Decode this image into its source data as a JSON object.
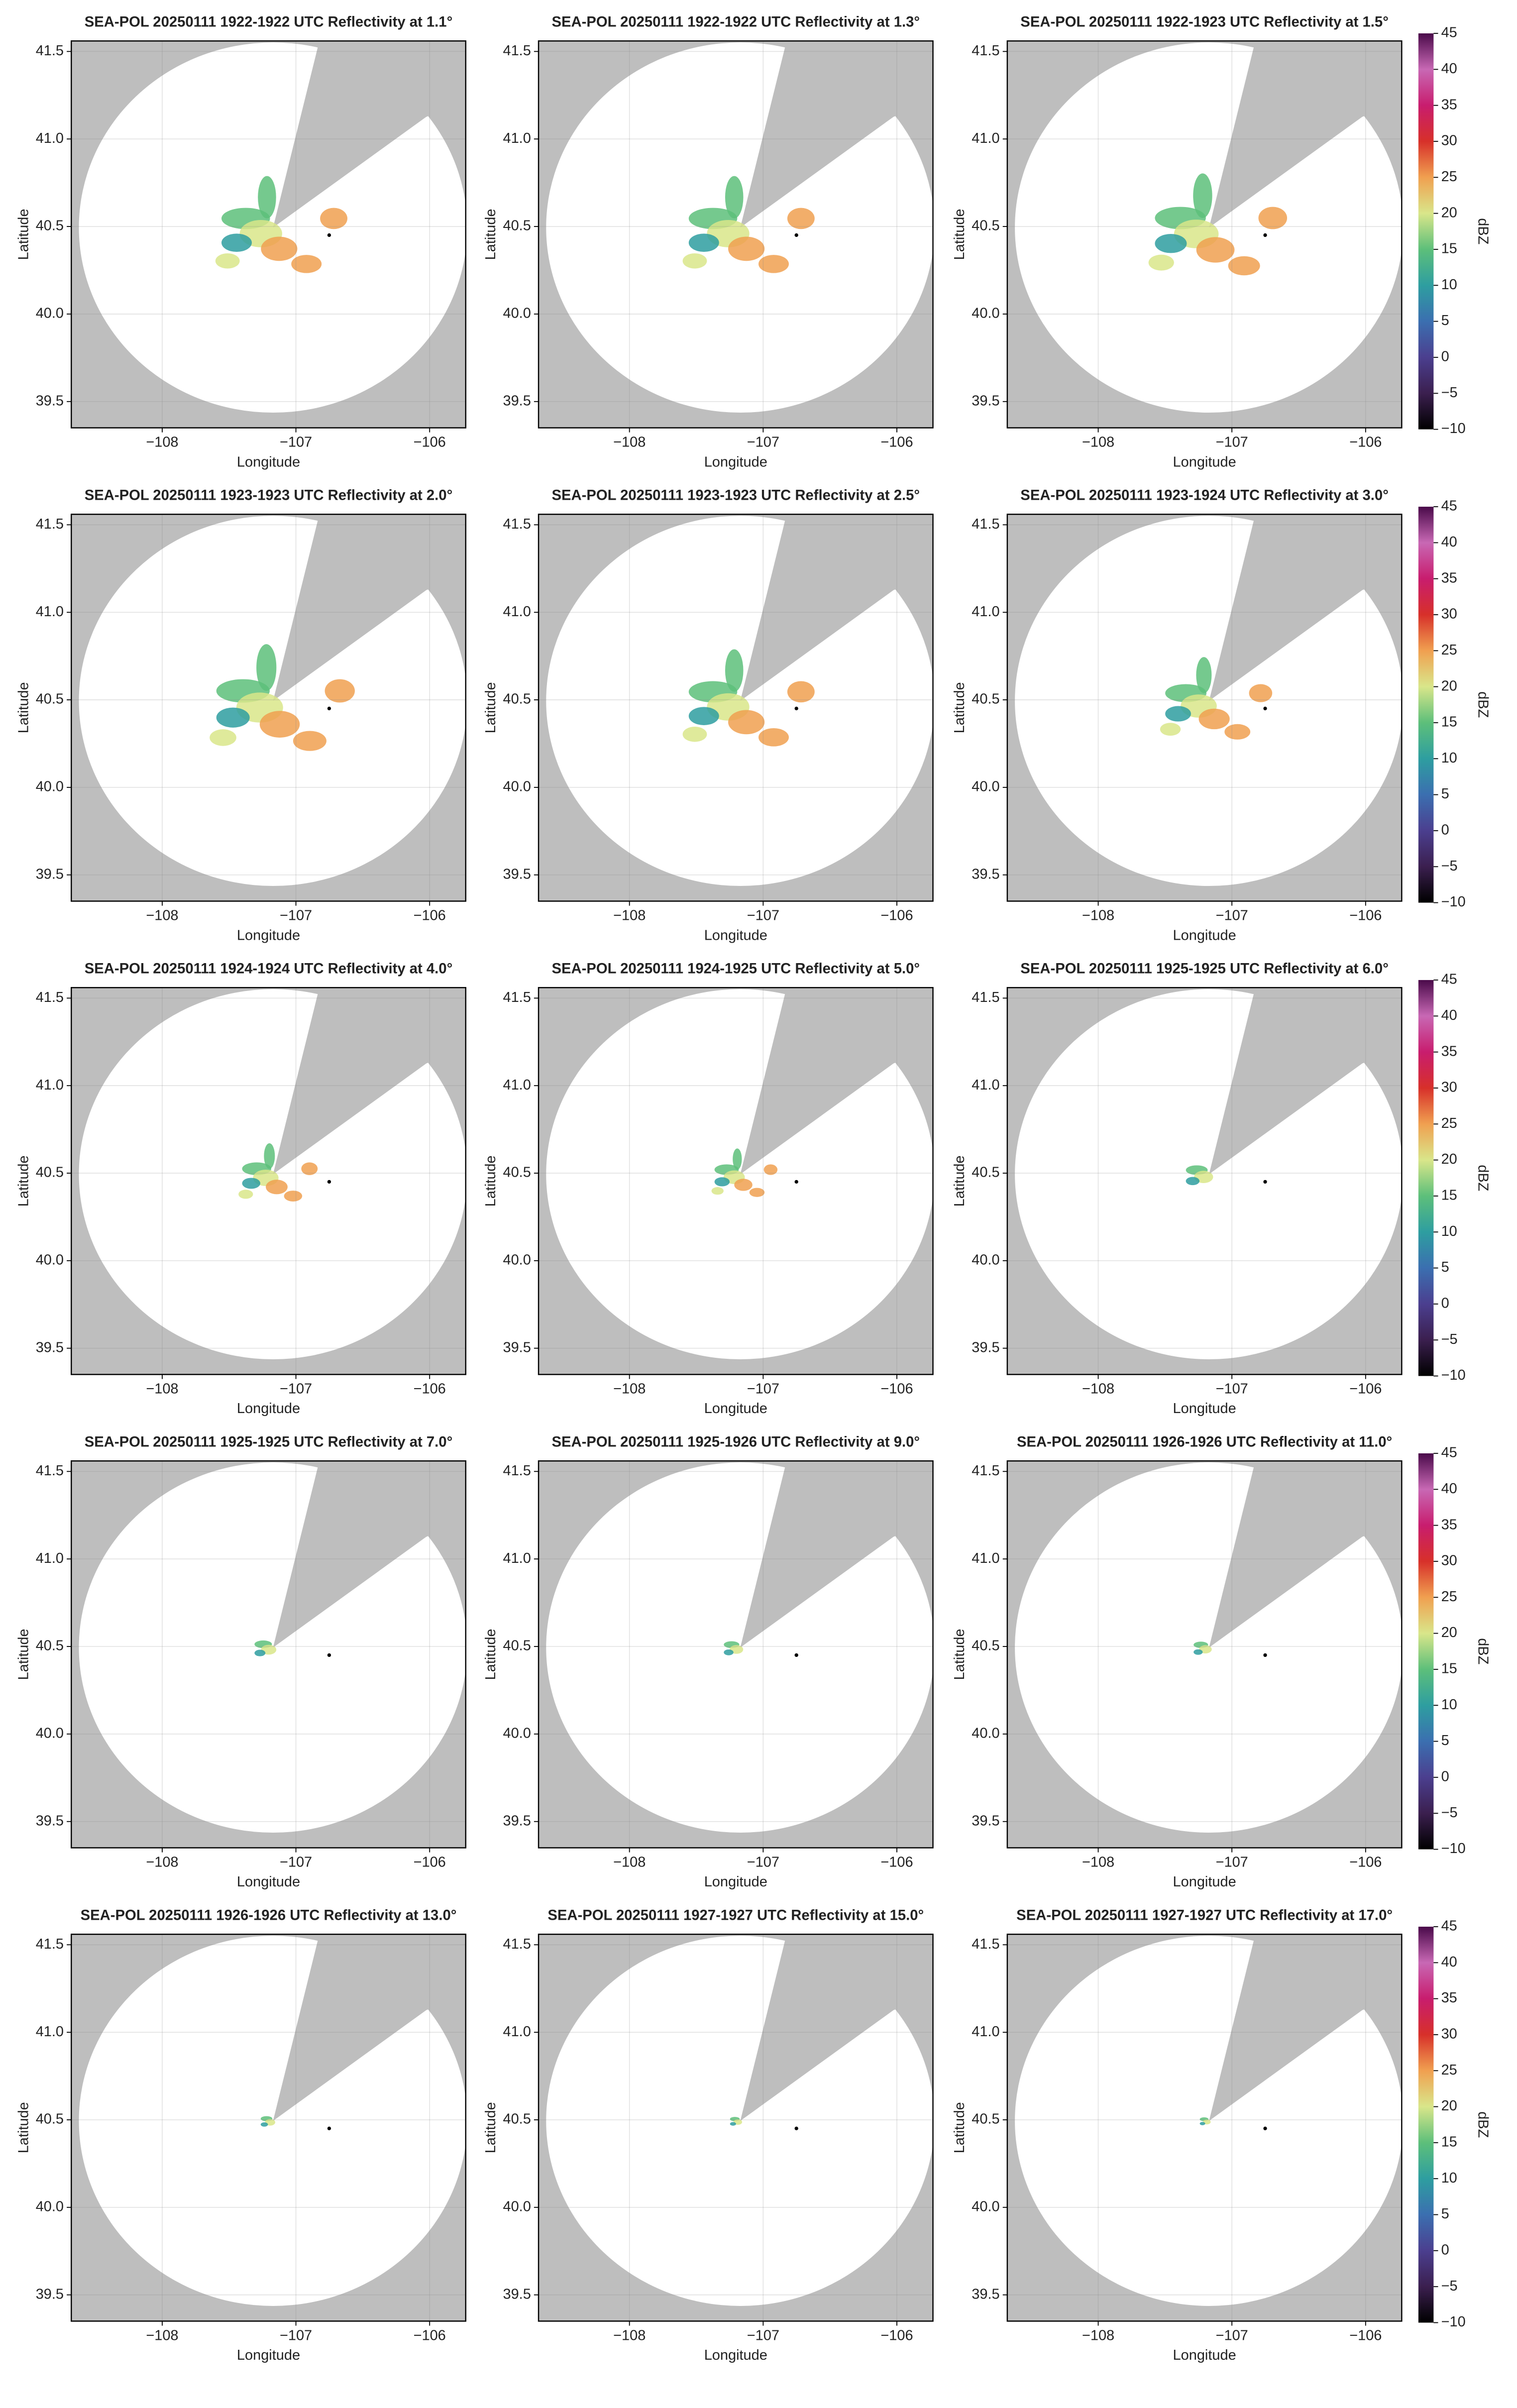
{
  "chart_data": [
    {
      "type": "radar",
      "title": "SEA-POL 20250111 1922-1922 UTC Reflectivity at 1.1°",
      "xlabel": "Longitude",
      "ylabel": "Latitude",
      "xlim": [
        -108.68,
        -105.73
      ],
      "ylim": [
        39.35,
        41.56
      ],
      "xticks": [
        {
          "value": -108,
          "label": "−108"
        },
        {
          "value": -107,
          "label": "−107"
        },
        {
          "value": -106,
          "label": "−106"
        }
      ],
      "yticks": [
        39.5,
        {
          "value": 40,
          "label": "40.0"
        },
        40.5,
        {
          "value": 41,
          "label": "41.0"
        },
        41.5
      ],
      "grid": true
    },
    {
      "type": "radar",
      "title": "SEA-POL 20250111 1922-1922 UTC Reflectivity at 1.3°",
      "xlabel": "Longitude",
      "ylabel": "Latitude",
      "xlim": [
        -108.68,
        -105.73
      ],
      "ylim": [
        39.35,
        41.56
      ],
      "xticks": [
        {
          "value": -108,
          "label": "−108"
        },
        {
          "value": -107,
          "label": "−107"
        },
        {
          "value": -106,
          "label": "−106"
        }
      ],
      "yticks": [
        39.5,
        {
          "value": 40,
          "label": "40.0"
        },
        40.5,
        {
          "value": 41,
          "label": "41.0"
        },
        41.5
      ],
      "grid": true
    },
    {
      "type": "radar",
      "title": "SEA-POL 20250111 1922-1923 UTC Reflectivity at 1.5°",
      "xlabel": "Longitude",
      "ylabel": "Latitude",
      "xlim": [
        -108.68,
        -105.73
      ],
      "ylim": [
        39.35,
        41.56
      ],
      "xticks": [
        {
          "value": -108,
          "label": "−108"
        },
        {
          "value": -107,
          "label": "−107"
        },
        {
          "value": -106,
          "label": "−106"
        }
      ],
      "yticks": [
        39.5,
        {
          "value": 40,
          "label": "40.0"
        },
        40.5,
        {
          "value": 41,
          "label": "41.0"
        },
        41.5
      ],
      "grid": true,
      "colorbar": {
        "label": "dBZ",
        "lim": [
          -10,
          45
        ],
        "ticks": [
          {
            "value": -10,
            "label": "−10"
          },
          {
            "value": -5,
            "label": "−5"
          },
          0,
          5,
          10,
          15,
          20,
          25,
          30,
          35,
          40,
          45
        ],
        "colormap": [
          "#000000",
          "#3b1f4f",
          "#4b3f8f",
          "#3b6fb0",
          "#2e9ea0",
          "#5dbf7a",
          "#d9e68a",
          "#f0a050",
          "#d7302a",
          "#c81d6e",
          "#c868b4",
          "#4a0a4a"
        ]
      }
    },
    {
      "type": "radar",
      "title": "SEA-POL 20250111 1923-1923 UTC Reflectivity at 2.0°",
      "xlabel": "Longitude",
      "ylabel": "Latitude",
      "xlim": [
        -108.68,
        -105.73
      ],
      "ylim": [
        39.35,
        41.56
      ],
      "xticks": [
        {
          "value": -108,
          "label": "−108"
        },
        {
          "value": -107,
          "label": "−107"
        },
        {
          "value": -106,
          "label": "−106"
        }
      ],
      "yticks": [
        39.5,
        {
          "value": 40,
          "label": "40.0"
        },
        40.5,
        {
          "value": 41,
          "label": "41.0"
        },
        41.5
      ],
      "grid": true
    },
    {
      "type": "radar",
      "title": "SEA-POL 20250111 1923-1923 UTC Reflectivity at 2.5°",
      "xlabel": "Longitude",
      "ylabel": "Latitude",
      "xlim": [
        -108.68,
        -105.73
      ],
      "ylim": [
        39.35,
        41.56
      ],
      "xticks": [
        {
          "value": -108,
          "label": "−108"
        },
        {
          "value": -107,
          "label": "−107"
        },
        {
          "value": -106,
          "label": "−106"
        }
      ],
      "yticks": [
        39.5,
        {
          "value": 40,
          "label": "40.0"
        },
        40.5,
        {
          "value": 41,
          "label": "41.0"
        },
        41.5
      ],
      "grid": true
    },
    {
      "type": "radar",
      "title": "SEA-POL 20250111 1923-1924 UTC Reflectivity at 3.0°",
      "xlabel": "Longitude",
      "ylabel": "Latitude",
      "xlim": [
        -108.68,
        -105.73
      ],
      "ylim": [
        39.35,
        41.56
      ],
      "xticks": [
        {
          "value": -108,
          "label": "−108"
        },
        {
          "value": -107,
          "label": "−107"
        },
        {
          "value": -106,
          "label": "−106"
        }
      ],
      "yticks": [
        39.5,
        {
          "value": 40,
          "label": "40.0"
        },
        40.5,
        {
          "value": 41,
          "label": "41.0"
        },
        41.5
      ],
      "grid": true,
      "colorbar": {
        "label": "dBZ",
        "lim": [
          -10,
          45
        ],
        "ticks": [
          {
            "value": -10,
            "label": "−10"
          },
          {
            "value": -5,
            "label": "−5"
          },
          0,
          5,
          10,
          15,
          20,
          25,
          30,
          35,
          40,
          45
        ],
        "colormap": [
          "#000000",
          "#3b1f4f",
          "#4b3f8f",
          "#3b6fb0",
          "#2e9ea0",
          "#5dbf7a",
          "#d9e68a",
          "#f0a050",
          "#d7302a",
          "#c81d6e",
          "#c868b4",
          "#4a0a4a"
        ]
      }
    },
    {
      "type": "radar",
      "title": "SEA-POL 20250111 1924-1924 UTC Reflectivity at 4.0°",
      "xlabel": "Longitude",
      "ylabel": "Latitude",
      "xlim": [
        -108.68,
        -105.73
      ],
      "ylim": [
        39.35,
        41.56
      ],
      "xticks": [
        {
          "value": -108,
          "label": "−108"
        },
        {
          "value": -107,
          "label": "−107"
        },
        {
          "value": -106,
          "label": "−106"
        }
      ],
      "yticks": [
        39.5,
        {
          "value": 40,
          "label": "40.0"
        },
        40.5,
        {
          "value": 41,
          "label": "41.0"
        },
        41.5
      ],
      "grid": true
    },
    {
      "type": "radar",
      "title": "SEA-POL 20250111 1924-1925 UTC Reflectivity at 5.0°",
      "xlabel": "Longitude",
      "ylabel": "Latitude",
      "xlim": [
        -108.68,
        -105.73
      ],
      "ylim": [
        39.35,
        41.56
      ],
      "xticks": [
        {
          "value": -108,
          "label": "−108"
        },
        {
          "value": -107,
          "label": "−107"
        },
        {
          "value": -106,
          "label": "−106"
        }
      ],
      "yticks": [
        39.5,
        {
          "value": 40,
          "label": "40.0"
        },
        40.5,
        {
          "value": 41,
          "label": "41.0"
        },
        41.5
      ],
      "grid": true
    },
    {
      "type": "radar",
      "title": "SEA-POL 20250111 1925-1925 UTC Reflectivity at 6.0°",
      "xlabel": "Longitude",
      "ylabel": "Latitude",
      "xlim": [
        -108.68,
        -105.73
      ],
      "ylim": [
        39.35,
        41.56
      ],
      "xticks": [
        {
          "value": -108,
          "label": "−108"
        },
        {
          "value": -107,
          "label": "−107"
        },
        {
          "value": -106,
          "label": "−106"
        }
      ],
      "yticks": [
        39.5,
        {
          "value": 40,
          "label": "40.0"
        },
        40.5,
        {
          "value": 41,
          "label": "41.0"
        },
        41.5
      ],
      "grid": true,
      "colorbar": {
        "label": "dBZ",
        "lim": [
          -10,
          45
        ],
        "ticks": [
          {
            "value": -10,
            "label": "−10"
          },
          {
            "value": -5,
            "label": "−5"
          },
          0,
          5,
          10,
          15,
          20,
          25,
          30,
          35,
          40,
          45
        ],
        "colormap": [
          "#000000",
          "#3b1f4f",
          "#4b3f8f",
          "#3b6fb0",
          "#2e9ea0",
          "#5dbf7a",
          "#d9e68a",
          "#f0a050",
          "#d7302a",
          "#c81d6e",
          "#c868b4",
          "#4a0a4a"
        ]
      }
    },
    {
      "type": "radar",
      "title": "SEA-POL 20250111 1925-1925 UTC Reflectivity at 7.0°",
      "xlabel": "Longitude",
      "ylabel": "Latitude",
      "xlim": [
        -108.68,
        -105.73
      ],
      "ylim": [
        39.35,
        41.56
      ],
      "xticks": [
        {
          "value": -108,
          "label": "−108"
        },
        {
          "value": -107,
          "label": "−107"
        },
        {
          "value": -106,
          "label": "−106"
        }
      ],
      "yticks": [
        39.5,
        {
          "value": 40,
          "label": "40.0"
        },
        40.5,
        {
          "value": 41,
          "label": "41.0"
        },
        41.5
      ],
      "grid": true
    },
    {
      "type": "radar",
      "title": "SEA-POL 20250111 1925-1926 UTC Reflectivity at 9.0°",
      "xlabel": "Longitude",
      "ylabel": "Latitude",
      "xlim": [
        -108.68,
        -105.73
      ],
      "ylim": [
        39.35,
        41.56
      ],
      "xticks": [
        {
          "value": -108,
          "label": "−108"
        },
        {
          "value": -107,
          "label": "−107"
        },
        {
          "value": -106,
          "label": "−106"
        }
      ],
      "yticks": [
        39.5,
        {
          "value": 40,
          "label": "40.0"
        },
        40.5,
        {
          "value": 41,
          "label": "41.0"
        },
        41.5
      ],
      "grid": true
    },
    {
      "type": "radar",
      "title": "SEA-POL 20250111 1926-1926 UTC Reflectivity at 11.0°",
      "xlabel": "Longitude",
      "ylabel": "Latitude",
      "xlim": [
        -108.68,
        -105.73
      ],
      "ylim": [
        39.35,
        41.56
      ],
      "xticks": [
        {
          "value": -108,
          "label": "−108"
        },
        {
          "value": -107,
          "label": "−107"
        },
        {
          "value": -106,
          "label": "−106"
        }
      ],
      "yticks": [
        39.5,
        {
          "value": 40,
          "label": "40.0"
        },
        40.5,
        {
          "value": 41,
          "label": "41.0"
        },
        41.5
      ],
      "grid": true,
      "colorbar": {
        "label": "dBZ",
        "lim": [
          -10,
          45
        ],
        "ticks": [
          {
            "value": -10,
            "label": "−10"
          },
          {
            "value": -5,
            "label": "−5"
          },
          0,
          5,
          10,
          15,
          20,
          25,
          30,
          35,
          40,
          45
        ],
        "colormap": [
          "#000000",
          "#3b1f4f",
          "#4b3f8f",
          "#3b6fb0",
          "#2e9ea0",
          "#5dbf7a",
          "#d9e68a",
          "#f0a050",
          "#d7302a",
          "#c81d6e",
          "#c868b4",
          "#4a0a4a"
        ]
      }
    },
    {
      "type": "radar",
      "title": "SEA-POL 20250111 1926-1926 UTC Reflectivity at 13.0°",
      "xlabel": "Longitude",
      "ylabel": "Latitude",
      "xlim": [
        -108.68,
        -105.73
      ],
      "ylim": [
        39.35,
        41.56
      ],
      "xticks": [
        {
          "value": -108,
          "label": "−108"
        },
        {
          "value": -107,
          "label": "−107"
        },
        {
          "value": -106,
          "label": "−106"
        }
      ],
      "yticks": [
        39.5,
        {
          "value": 40,
          "label": "40.0"
        },
        40.5,
        {
          "value": 41,
          "label": "41.0"
        },
        41.5
      ],
      "grid": true
    },
    {
      "type": "radar",
      "title": "SEA-POL 20250111 1927-1927 UTC Reflectivity at 15.0°",
      "xlabel": "Longitude",
      "ylabel": "Latitude",
      "xlim": [
        -108.68,
        -105.73
      ],
      "ylim": [
        39.35,
        41.56
      ],
      "xticks": [
        {
          "value": -108,
          "label": "−108"
        },
        {
          "value": -107,
          "label": "−107"
        },
        {
          "value": -106,
          "label": "−106"
        }
      ],
      "yticks": [
        39.5,
        {
          "value": 40,
          "label": "40.0"
        },
        40.5,
        {
          "value": 41,
          "label": "41.0"
        },
        41.5
      ],
      "grid": true
    },
    {
      "type": "radar",
      "title": "SEA-POL 20250111 1927-1927 UTC Reflectivity at 17.0°",
      "xlabel": "Longitude",
      "ylabel": "Latitude",
      "xlim": [
        -108.68,
        -105.73
      ],
      "ylim": [
        39.35,
        41.56
      ],
      "xticks": [
        {
          "value": -108,
          "label": "−108"
        },
        {
          "value": -107,
          "label": "−107"
        },
        {
          "value": -106,
          "label": "−106"
        }
      ],
      "yticks": [
        39.5,
        {
          "value": 40,
          "label": "40.0"
        },
        40.5,
        {
          "value": 41,
          "label": "41.0"
        },
        41.5
      ],
      "grid": true,
      "colorbar": {
        "label": "dBZ",
        "lim": [
          -10,
          45
        ],
        "ticks": [
          {
            "value": -10,
            "label": "−10"
          },
          {
            "value": -5,
            "label": "−5"
          },
          0,
          5,
          10,
          15,
          20,
          25,
          30,
          35,
          40,
          45
        ],
        "colormap": [
          "#000000",
          "#3b1f4f",
          "#4b3f8f",
          "#3b6fb0",
          "#2e9ea0",
          "#5dbf7a",
          "#d9e68a",
          "#f0a050",
          "#d7302a",
          "#c81d6e",
          "#c868b4",
          "#4a0a4a"
        ]
      }
    }
  ]
}
